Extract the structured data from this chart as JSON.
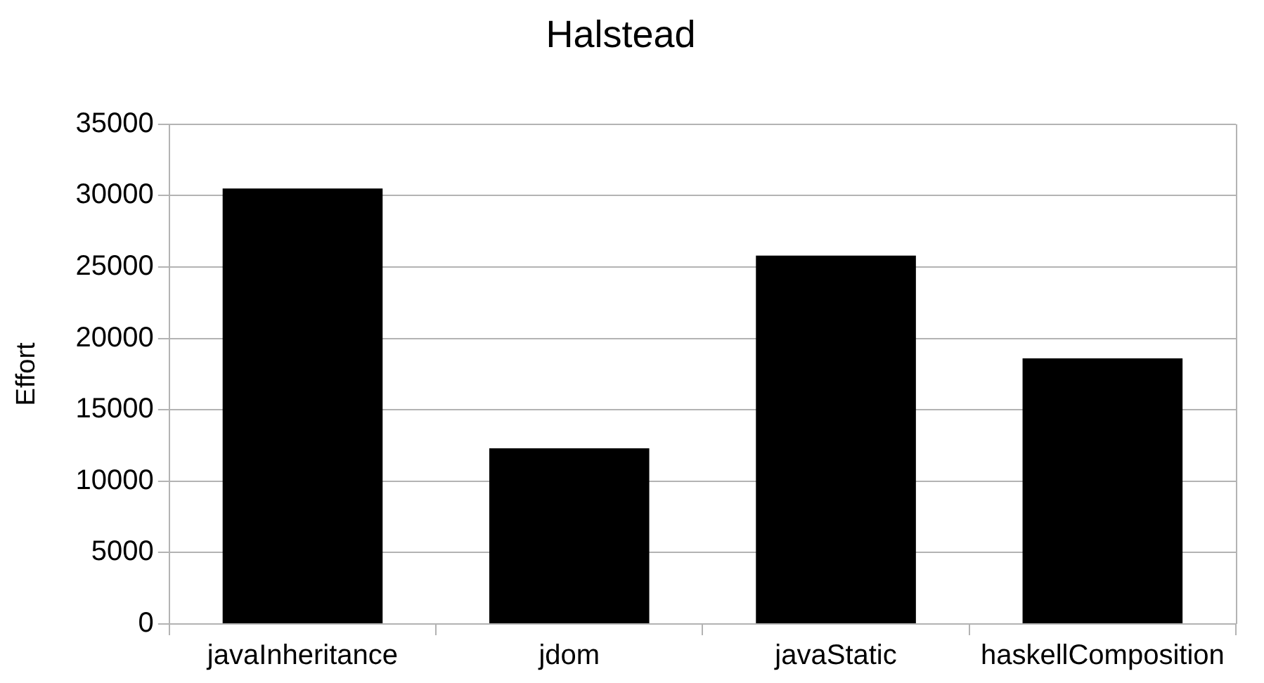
{
  "chart_data": {
    "type": "bar",
    "title": "Halstead",
    "ylabel": "Effort",
    "categories": [
      "javaInheritance",
      "jdom",
      "javaStatic",
      "haskellComposition"
    ],
    "values": [
      30500,
      12300,
      25800,
      18600
    ],
    "color": "#000000",
    "ylim": [
      0,
      35000
    ],
    "yticks": [
      0,
      5000,
      10000,
      15000,
      20000,
      25000,
      30000,
      35000
    ],
    "grid": "y",
    "legend": false
  }
}
